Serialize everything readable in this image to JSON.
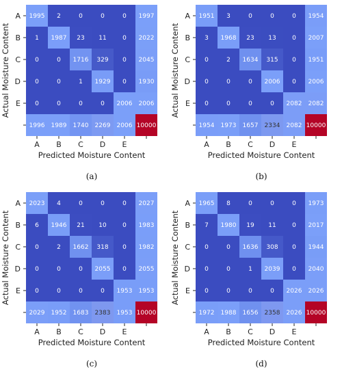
{
  "chart_data": [
    {
      "type": "heatmap",
      "caption": "(a)",
      "rows": [
        "A",
        "B",
        "C",
        "D",
        "E",
        ""
      ],
      "cols": [
        "A",
        "B",
        "C",
        "D",
        "E",
        ""
      ],
      "xlabel": "Predicted Moisture Content",
      "ylabel": "Actual Moisture Content",
      "values": [
        [
          1995,
          2,
          0,
          0,
          0,
          1997
        ],
        [
          1,
          1987,
          23,
          11,
          0,
          2022
        ],
        [
          0,
          0,
          1716,
          329,
          0,
          2045
        ],
        [
          0,
          0,
          1,
          1929,
          0,
          1930
        ],
        [
          0,
          0,
          0,
          0,
          2006,
          2006
        ],
        [
          1996,
          1989,
          1740,
          2269,
          2006,
          10000
        ]
      ]
    },
    {
      "type": "heatmap",
      "caption": "(b)",
      "rows": [
        "A",
        "B",
        "C",
        "D",
        "E",
        ""
      ],
      "cols": [
        "A",
        "B",
        "C",
        "D",
        "E",
        ""
      ],
      "xlabel": "Predicted Moisture Content",
      "ylabel": "Actual Moisture Content",
      "values": [
        [
          1951,
          3,
          0,
          0,
          0,
          1954
        ],
        [
          3,
          1968,
          23,
          13,
          0,
          2007
        ],
        [
          0,
          2,
          1634,
          315,
          0,
          1951
        ],
        [
          0,
          0,
          0,
          2006,
          0,
          2006
        ],
        [
          0,
          0,
          0,
          0,
          2082,
          2082
        ],
        [
          1954,
          1973,
          1657,
          2334,
          2082,
          10000
        ]
      ]
    },
    {
      "type": "heatmap",
      "caption": "(c)",
      "rows": [
        "A",
        "B",
        "C",
        "D",
        "E",
        ""
      ],
      "cols": [
        "A",
        "B",
        "C",
        "D",
        "E",
        ""
      ],
      "xlabel": "Predicted Moisture Content",
      "ylabel": "Actual Moisture Content",
      "values": [
        [
          2023,
          4,
          0,
          0,
          0,
          2027
        ],
        [
          6,
          1946,
          21,
          10,
          0,
          1983
        ],
        [
          0,
          2,
          1662,
          318,
          0,
          1982
        ],
        [
          0,
          0,
          0,
          2055,
          0,
          2055
        ],
        [
          0,
          0,
          0,
          0,
          1953,
          1953
        ],
        [
          2029,
          1952,
          1683,
          2383,
          1953,
          10000
        ]
      ]
    },
    {
      "type": "heatmap",
      "caption": "(d)",
      "rows": [
        "A",
        "B",
        "C",
        "D",
        "E",
        ""
      ],
      "cols": [
        "A",
        "B",
        "C",
        "D",
        "E",
        ""
      ],
      "xlabel": "Predicted Moisture Content",
      "ylabel": "Actual Moisture Content",
      "values": [
        [
          1965,
          8,
          0,
          0,
          0,
          1973
        ],
        [
          7,
          1980,
          19,
          11,
          0,
          2017
        ],
        [
          0,
          0,
          1636,
          308,
          0,
          1944
        ],
        [
          0,
          0,
          1,
          2039,
          0,
          2040
        ],
        [
          0,
          0,
          0,
          0,
          2026,
          2026
        ],
        [
          1972,
          1988,
          1656,
          2358,
          2026,
          10000
        ]
      ]
    }
  ],
  "colors": {
    "low": "#3b4cc0",
    "mid": "#7b9ff9",
    "high": "#b40426",
    "text_on_dark": "#ffffff",
    "text_on_light": "#333333"
  }
}
